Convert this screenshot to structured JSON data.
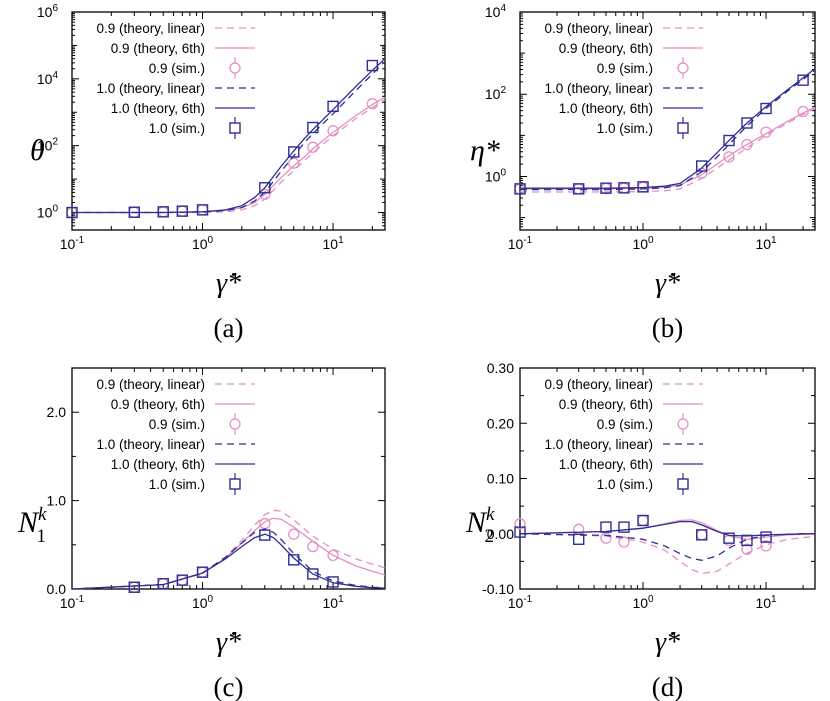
{
  "colors": {
    "restitution_0_9": "#e48fc2",
    "restitution_1_0": "#2e2e94",
    "axis": "#000000"
  },
  "chart_data": [
    {
      "panel_label": "(a)",
      "type": "line",
      "ylabel": "θ",
      "xlabel": "γ̇*",
      "xscale": "log",
      "yscale": "log",
      "xlim": [
        0.1,
        25
      ],
      "ylim": [
        0.3,
        1000000
      ],
      "xticks": [
        0.1,
        1,
        10
      ],
      "xtick_labels": [
        [
          "10",
          "-1"
        ],
        [
          "10",
          "0"
        ],
        [
          "10",
          "1"
        ]
      ],
      "yticks": [
        1,
        100,
        10000,
        1000000
      ],
      "ytick_labels": [
        [
          "10",
          "0"
        ],
        [
          "10",
          "2"
        ],
        [
          "10",
          "4"
        ],
        [
          "10",
          "6"
        ]
      ],
      "legend_position": "top-left",
      "legend": [
        "0.9 (theory, linear)",
        "0.9 (theory, 6th)",
        "0.9 (sim.)",
        "1.0 (theory, linear)",
        "1.0 (theory, 6th)",
        "1.0 (sim.)"
      ],
      "series": [
        {
          "name": "0.9 (theory, linear)",
          "style": "dashed",
          "color": "#e48fc2",
          "x": [
            0.1,
            0.5,
            1,
            1.5,
            2,
            2.5,
            3,
            4,
            5,
            6,
            7,
            10,
            15,
            20,
            25
          ],
          "y": [
            1.0,
            1.0,
            1.0,
            1.05,
            1.2,
            1.6,
            2.5,
            8,
            18,
            35,
            60,
            200,
            650,
            1400,
            2400
          ]
        },
        {
          "name": "0.9 (theory, 6th)",
          "style": "solid",
          "color": "#e48fc2",
          "x": [
            0.1,
            0.5,
            1,
            1.5,
            2,
            2.5,
            3,
            4,
            5,
            6,
            7,
            10,
            15,
            20,
            25
          ],
          "y": [
            1.0,
            1.0,
            1.05,
            1.15,
            1.4,
            2.0,
            3.5,
            11,
            25,
            45,
            80,
            250,
            800,
            1700,
            2800
          ]
        },
        {
          "name": "0.9 (sim.)",
          "style": "marker-circle",
          "color": "#e48fc2",
          "x": [
            0.1,
            0.3,
            0.5,
            0.7,
            1,
            3,
            5,
            7,
            10,
            20
          ],
          "y": [
            1.0,
            1.02,
            1.05,
            1.1,
            1.2,
            3.5,
            30,
            90,
            280,
            1800
          ]
        },
        {
          "name": "1.0 (theory, linear)",
          "style": "dashed",
          "color": "#2e2e94",
          "x": [
            0.1,
            0.5,
            1,
            1.5,
            2,
            2.5,
            3,
            4,
            5,
            6,
            7,
            10,
            15,
            20,
            25
          ],
          "y": [
            1.0,
            1.0,
            1.05,
            1.15,
            1.4,
            2.2,
            4,
            17,
            50,
            120,
            230,
            900,
            4500,
            14000,
            33000
          ]
        },
        {
          "name": "1.0 (theory, 6th)",
          "style": "solid",
          "color": "#2e2e94",
          "x": [
            0.1,
            0.5,
            1,
            1.5,
            2,
            2.5,
            3,
            4,
            5,
            6,
            7,
            10,
            15,
            20,
            25
          ],
          "y": [
            1.0,
            1.0,
            1.05,
            1.2,
            1.6,
            2.8,
            5.5,
            24,
            70,
            160,
            300,
            1200,
            6000,
            18000,
            40000
          ]
        },
        {
          "name": "1.0 (sim.)",
          "style": "marker-square",
          "color": "#2e2e94",
          "x": [
            0.1,
            0.3,
            0.5,
            0.7,
            1,
            3,
            5,
            7,
            10,
            20
          ],
          "y": [
            1.0,
            1.02,
            1.05,
            1.1,
            1.2,
            5.5,
            65,
            350,
            1500,
            25000
          ]
        }
      ]
    },
    {
      "panel_label": "(b)",
      "type": "line",
      "ylabel": "η*",
      "xlabel": "γ̇*",
      "xscale": "log",
      "yscale": "log",
      "xlim": [
        0.1,
        25
      ],
      "ylim": [
        0.05,
        10000
      ],
      "xticks": [
        0.1,
        1,
        10
      ],
      "xtick_labels": [
        [
          "10",
          "-1"
        ],
        [
          "10",
          "0"
        ],
        [
          "10",
          "1"
        ]
      ],
      "yticks": [
        1,
        100,
        10000
      ],
      "ytick_labels": [
        [
          "10",
          "0"
        ],
        [
          "10",
          "2"
        ],
        [
          "10",
          "4"
        ]
      ],
      "legend_position": "top-left",
      "legend": [
        "0.9 (theory, linear)",
        "0.9 (theory, 6th)",
        "0.9 (sim.)",
        "1.0 (theory, linear)",
        "1.0 (theory, 6th)",
        "1.0 (sim.)"
      ],
      "series": [
        {
          "name": "0.9 (theory, linear)",
          "style": "dashed",
          "color": "#e48fc2",
          "x": [
            0.1,
            0.5,
            1,
            1.5,
            2,
            3,
            4,
            5,
            7,
            10,
            15,
            20,
            25
          ],
          "y": [
            0.42,
            0.42,
            0.43,
            0.45,
            0.5,
            0.9,
            1.6,
            2.5,
            5,
            10,
            20,
            32,
            45
          ]
        },
        {
          "name": "0.9 (theory, 6th)",
          "style": "solid",
          "color": "#e48fc2",
          "x": [
            0.1,
            0.5,
            1,
            1.5,
            2,
            3,
            4,
            5,
            7,
            10,
            15,
            20,
            25
          ],
          "y": [
            0.5,
            0.5,
            0.52,
            0.55,
            0.62,
            1.1,
            2.0,
            3.2,
            6,
            11,
            22,
            35,
            48
          ]
        },
        {
          "name": "0.9 (sim.)",
          "style": "marker-circle",
          "color": "#e48fc2",
          "x": [
            0.1,
            0.3,
            0.5,
            0.7,
            1,
            3,
            5,
            7,
            10,
            20
          ],
          "y": [
            0.5,
            0.5,
            0.51,
            0.52,
            0.55,
            1.2,
            3.0,
            6.0,
            12,
            38
          ]
        },
        {
          "name": "1.0 (theory, linear)",
          "style": "dashed",
          "color": "#2e2e94",
          "x": [
            0.1,
            0.5,
            1,
            1.5,
            2,
            3,
            4,
            5,
            7,
            10,
            15,
            20,
            25
          ],
          "y": [
            0.48,
            0.48,
            0.5,
            0.53,
            0.6,
            1.3,
            3.0,
            6,
            17,
            45,
            120,
            230,
            380
          ]
        },
        {
          "name": "1.0 (theory, 6th)",
          "style": "solid",
          "color": "#2e2e94",
          "x": [
            0.1,
            0.5,
            1,
            1.5,
            2,
            3,
            4,
            5,
            7,
            10,
            15,
            20,
            25
          ],
          "y": [
            0.52,
            0.52,
            0.54,
            0.58,
            0.68,
            1.6,
            3.8,
            7.5,
            20,
            50,
            130,
            250,
            420
          ]
        },
        {
          "name": "1.0 (sim.)",
          "style": "marker-square",
          "color": "#2e2e94",
          "x": [
            0.1,
            0.3,
            0.5,
            0.7,
            1,
            3,
            5,
            7,
            10,
            20
          ],
          "y": [
            0.5,
            0.5,
            0.52,
            0.53,
            0.56,
            1.8,
            7.5,
            20,
            45,
            220
          ]
        }
      ]
    },
    {
      "panel_label": "(c)",
      "type": "line",
      "ylabel": "N1k",
      "ylabel_main": "N",
      "ylabel_sub": "1",
      "ylabel_sup": "k",
      "xlabel": "γ̇*",
      "xscale": "log",
      "yscale": "linear",
      "xlim": [
        0.1,
        25
      ],
      "ylim": [
        0,
        2.5
      ],
      "xticks": [
        0.1,
        1,
        10
      ],
      "xtick_labels": [
        [
          "10",
          "-1"
        ],
        [
          "10",
          "0"
        ],
        [
          "10",
          "1"
        ]
      ],
      "yticks": [
        0,
        1.0,
        2.0
      ],
      "ytick_labels": [
        [
          "0.0",
          ""
        ],
        [
          "1.0",
          ""
        ],
        [
          "2.0",
          ""
        ]
      ],
      "legend_position": "top-left",
      "legend": [
        "0.9 (theory, linear)",
        "0.9 (theory, 6th)",
        "0.9 (sim.)",
        "1.0 (theory, linear)",
        "1.0 (theory, 6th)",
        "1.0 (sim.)"
      ],
      "series": [
        {
          "name": "0.9 (theory, linear)",
          "style": "dashed",
          "color": "#e48fc2",
          "x": [
            0.1,
            0.5,
            1,
            1.5,
            2,
            2.5,
            3,
            3.5,
            4,
            5,
            7,
            10,
            15,
            20,
            25
          ],
          "y": [
            0,
            0.05,
            0.18,
            0.36,
            0.55,
            0.72,
            0.84,
            0.89,
            0.88,
            0.78,
            0.6,
            0.45,
            0.34,
            0.28,
            0.24
          ]
        },
        {
          "name": "0.9 (theory, 6th)",
          "style": "solid",
          "color": "#e48fc2",
          "x": [
            0.1,
            0.5,
            1,
            1.5,
            2,
            2.5,
            3,
            3.5,
            4,
            5,
            7,
            10,
            15,
            20,
            25
          ],
          "y": [
            0,
            0.05,
            0.18,
            0.35,
            0.52,
            0.66,
            0.76,
            0.8,
            0.79,
            0.7,
            0.54,
            0.38,
            0.26,
            0.2,
            0.16
          ]
        },
        {
          "name": "0.9 (sim.)",
          "style": "marker-circle",
          "color": "#e48fc2",
          "x": [
            0.3,
            0.5,
            0.7,
            1,
            3,
            5,
            7,
            10
          ],
          "y": [
            0.02,
            0.06,
            0.1,
            0.19,
            0.74,
            0.62,
            0.48,
            0.38
          ]
        },
        {
          "name": "1.0 (theory, linear)",
          "style": "dashed",
          "color": "#2e2e94",
          "x": [
            0.1,
            0.5,
            1,
            1.5,
            2,
            2.5,
            3,
            3.5,
            4,
            5,
            7,
            10,
            15,
            20,
            25
          ],
          "y": [
            0,
            0.05,
            0.18,
            0.36,
            0.52,
            0.64,
            0.68,
            0.64,
            0.56,
            0.4,
            0.2,
            0.09,
            0.04,
            0.02,
            0.01
          ]
        },
        {
          "name": "1.0 (theory, 6th)",
          "style": "solid",
          "color": "#2e2e94",
          "x": [
            0.1,
            0.5,
            1,
            1.5,
            2,
            2.5,
            3,
            3.5,
            4,
            5,
            7,
            10,
            15,
            20,
            25
          ],
          "y": [
            0,
            0.05,
            0.18,
            0.34,
            0.48,
            0.58,
            0.62,
            0.58,
            0.5,
            0.35,
            0.17,
            0.07,
            0.03,
            0.015,
            0.01
          ]
        },
        {
          "name": "1.0 (sim.)",
          "style": "marker-square",
          "color": "#2e2e94",
          "x": [
            0.3,
            0.5,
            0.7,
            1,
            3,
            5,
            7,
            10
          ],
          "y": [
            0.02,
            0.06,
            0.1,
            0.19,
            0.61,
            0.33,
            0.17,
            0.08
          ]
        }
      ]
    },
    {
      "panel_label": "(d)",
      "type": "line",
      "ylabel": "N2k",
      "ylabel_main": "N",
      "ylabel_sub": "2",
      "ylabel_sup": "k",
      "xlabel": "γ̇*",
      "xscale": "log",
      "yscale": "linear",
      "xlim": [
        0.1,
        25
      ],
      "ylim": [
        -0.1,
        0.3
      ],
      "xticks": [
        0.1,
        1,
        10
      ],
      "xtick_labels": [
        [
          "10",
          "-1"
        ],
        [
          "10",
          "0"
        ],
        [
          "10",
          "1"
        ]
      ],
      "yticks": [
        -0.1,
        0,
        0.1,
        0.2,
        0.3
      ],
      "ytick_labels": [
        [
          "-0.10",
          ""
        ],
        [
          "0.00",
          ""
        ],
        [
          "0.10",
          ""
        ],
        [
          "0.20",
          ""
        ],
        [
          "0.30",
          ""
        ]
      ],
      "legend_position": "top-left",
      "legend": [
        "0.9 (theory, linear)",
        "0.9 (theory, 6th)",
        "0.9 (sim.)",
        "1.0 (theory, linear)",
        "1.0 (theory, 6th)",
        "1.0 (sim.)"
      ],
      "series": [
        {
          "name": "0.9 (theory, linear)",
          "style": "dashed",
          "color": "#e48fc2",
          "x": [
            0.1,
            0.5,
            1,
            1.5,
            2,
            2.5,
            3,
            4,
            5,
            7,
            10,
            15,
            20,
            25
          ],
          "y": [
            0,
            -0.004,
            -0.015,
            -0.03,
            -0.05,
            -0.065,
            -0.072,
            -0.068,
            -0.055,
            -0.035,
            -0.02,
            -0.01,
            -0.007,
            -0.005
          ]
        },
        {
          "name": "0.9 (theory, 6th)",
          "style": "solid",
          "color": "#e48fc2",
          "x": [
            0.1,
            0.5,
            1,
            1.5,
            2,
            2.5,
            3,
            4,
            5,
            7,
            10,
            15,
            20,
            25
          ],
          "y": [
            0,
            0.004,
            0.01,
            0.018,
            0.024,
            0.025,
            0.02,
            0.006,
            -0.004,
            -0.01,
            -0.006,
            -0.002,
            -0.001,
            0
          ]
        },
        {
          "name": "0.9 (sim.)",
          "style": "marker-circle",
          "color": "#e48fc2",
          "x": [
            0.1,
            0.3,
            0.5,
            0.7,
            1,
            3,
            5,
            7,
            10
          ],
          "y": [
            0.018,
            0.008,
            -0.008,
            -0.015,
            0.024,
            -0.002,
            -0.012,
            -0.028,
            -0.022
          ]
        },
        {
          "name": "1.0 (theory, linear)",
          "style": "dashed",
          "color": "#2e2e94",
          "x": [
            0.1,
            0.5,
            1,
            1.5,
            2,
            2.5,
            3,
            4,
            5,
            7,
            10,
            15,
            20,
            25
          ],
          "y": [
            0,
            -0.003,
            -0.01,
            -0.022,
            -0.036,
            -0.045,
            -0.048,
            -0.04,
            -0.026,
            -0.01,
            -0.003,
            -0.001,
            0,
            0
          ]
        },
        {
          "name": "1.0 (theory, 6th)",
          "style": "solid",
          "color": "#2e2e94",
          "x": [
            0.1,
            0.5,
            1,
            1.5,
            2,
            2.5,
            3,
            4,
            5,
            7,
            10,
            15,
            20,
            25
          ],
          "y": [
            0,
            0.004,
            0.01,
            0.017,
            0.022,
            0.022,
            0.016,
            0.004,
            -0.003,
            -0.004,
            -0.002,
            -0.001,
            0,
            0
          ]
        },
        {
          "name": "1.0 (sim.)",
          "style": "marker-square",
          "color": "#2e2e94",
          "x": [
            0.1,
            0.3,
            0.5,
            0.7,
            1,
            3,
            5,
            7,
            10
          ],
          "y": [
            0.003,
            -0.01,
            0.012,
            0.012,
            0.024,
            -0.002,
            -0.008,
            -0.012,
            -0.006
          ]
        }
      ]
    }
  ]
}
